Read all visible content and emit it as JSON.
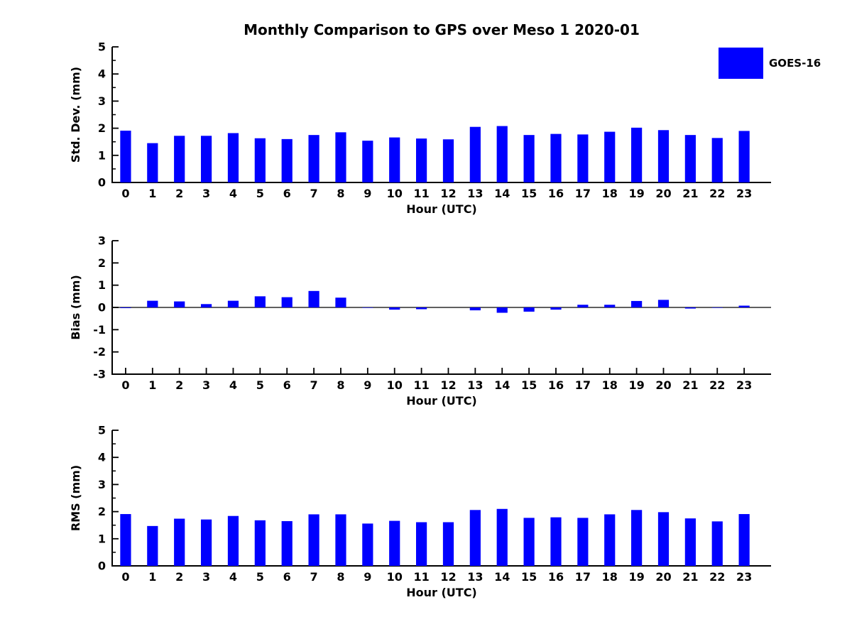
{
  "title": "Monthly Comparison to GPS over Meso 1 2020-01",
  "legend": {
    "label": "GOES-16",
    "color": "#0000ff",
    "position": "upper right"
  },
  "colors": {
    "bar": "#0000ff",
    "axis": "#000000",
    "text": "#000000",
    "background": "#ffffff"
  },
  "chart_data": [
    {
      "type": "bar",
      "panel": "std-dev",
      "series_name": "GOES-16",
      "ylabel": "Std. Dev. (mm)",
      "xlabel": "Hour (UTC)",
      "categories": [
        "0",
        "1",
        "2",
        "3",
        "4",
        "5",
        "6",
        "7",
        "8",
        "9",
        "10",
        "11",
        "12",
        "13",
        "14",
        "15",
        "16",
        "17",
        "18",
        "19",
        "20",
        "21",
        "22",
        "23"
      ],
      "values": [
        1.91,
        1.45,
        1.72,
        1.72,
        1.82,
        1.63,
        1.6,
        1.75,
        1.85,
        1.54,
        1.66,
        1.62,
        1.59,
        2.05,
        2.08,
        1.75,
        1.79,
        1.77,
        1.87,
        2.02,
        1.93,
        1.75,
        1.64,
        1.9
      ],
      "ylim": [
        0,
        5
      ],
      "yticks": [
        0,
        1,
        2,
        3,
        4,
        5
      ],
      "y_minor_ticks": true,
      "grid": false
    },
    {
      "type": "bar",
      "panel": "bias",
      "series_name": "GOES-16",
      "ylabel": "Bias (mm)",
      "xlabel": "Hour (UTC)",
      "categories": [
        "0",
        "1",
        "2",
        "3",
        "4",
        "5",
        "6",
        "7",
        "8",
        "9",
        "10",
        "11",
        "12",
        "13",
        "14",
        "15",
        "16",
        "17",
        "18",
        "19",
        "20",
        "21",
        "22",
        "23"
      ],
      "values": [
        -0.03,
        0.3,
        0.27,
        0.15,
        0.3,
        0.5,
        0.46,
        0.74,
        0.44,
        -0.02,
        -0.1,
        -0.08,
        0.0,
        -0.13,
        -0.24,
        -0.19,
        -0.1,
        0.12,
        0.12,
        0.29,
        0.34,
        -0.05,
        -0.02,
        0.08
      ],
      "ylim": [
        -3,
        3
      ],
      "yticks": [
        -3,
        -2,
        -1,
        0,
        1,
        2,
        3
      ],
      "y_minor_ticks": false,
      "grid": false
    },
    {
      "type": "bar",
      "panel": "rms",
      "series_name": "GOES-16",
      "ylabel": "RMS (mm)",
      "xlabel": "Hour (UTC)",
      "categories": [
        "0",
        "1",
        "2",
        "3",
        "4",
        "5",
        "6",
        "7",
        "8",
        "9",
        "10",
        "11",
        "12",
        "13",
        "14",
        "15",
        "16",
        "17",
        "18",
        "19",
        "20",
        "21",
        "22",
        "23"
      ],
      "values": [
        1.91,
        1.47,
        1.74,
        1.71,
        1.84,
        1.68,
        1.65,
        1.9,
        1.9,
        1.56,
        1.66,
        1.61,
        1.61,
        2.06,
        2.1,
        1.77,
        1.79,
        1.77,
        1.9,
        2.06,
        1.98,
        1.75,
        1.64,
        1.91
      ],
      "ylim": [
        0,
        5
      ],
      "yticks": [
        0,
        1,
        2,
        3,
        4,
        5
      ],
      "y_minor_ticks": true,
      "grid": false
    }
  ]
}
